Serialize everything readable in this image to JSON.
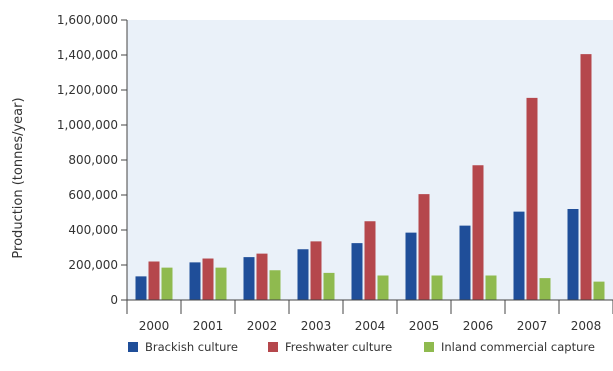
{
  "chart_data": {
    "type": "bar",
    "title": "",
    "xlabel": "",
    "ylabel": "Production (tonnes/year)",
    "ylim": [
      0,
      1600000
    ],
    "yticks": [
      0,
      200000,
      400000,
      600000,
      800000,
      1000000,
      1200000,
      1400000,
      1600000
    ],
    "ytick_labels": [
      "0",
      "200,000",
      "400,000",
      "600,000",
      "800,000",
      "1,000,000",
      "1,200,000",
      "1,400,000",
      "1,600,000"
    ],
    "categories": [
      "2000",
      "2001",
      "2002",
      "2003",
      "2004",
      "2005",
      "2006",
      "2007",
      "2008"
    ],
    "grid": false,
    "legend_position": "bottom",
    "plot_background": "#eaf1f9",
    "series": [
      {
        "name": "Brackish culture",
        "color": "#1f4e99",
        "values": [
          135000,
          215000,
          245000,
          290000,
          325000,
          385000,
          425000,
          505000,
          520000
        ]
      },
      {
        "name": "Freshwater culture",
        "color": "#b5474c",
        "values": [
          220000,
          237000,
          265000,
          335000,
          450000,
          605000,
          770000,
          1155000,
          1405000
        ]
      },
      {
        "name": "Inland commercial capture",
        "color": "#8fba4f",
        "values": [
          185000,
          185000,
          170000,
          155000,
          140000,
          140000,
          140000,
          125000,
          105000
        ]
      }
    ]
  }
}
